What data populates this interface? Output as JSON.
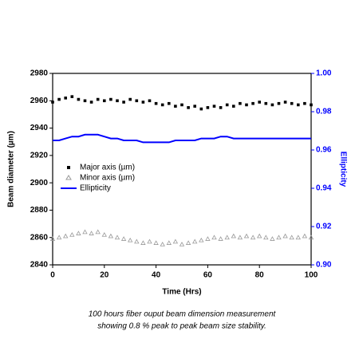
{
  "chart_data": {
    "type": "scatter-line",
    "xlabel": "Time (Hrs)",
    "ylabel": "Beam diameter (µm)",
    "y2label": "Ellipticity",
    "caption": [
      "100 hours fiber ouput beam dimension measurement",
      "showing 0.8 % peak to peak beam size stability."
    ],
    "x": [
      0,
      2.5,
      5,
      7.5,
      10,
      12.5,
      15,
      17.5,
      20,
      22.5,
      25,
      27.5,
      30,
      32.5,
      35,
      37.5,
      40,
      42.5,
      45,
      47.5,
      50,
      52.5,
      55,
      57.5,
      60,
      62.5,
      65,
      67.5,
      70,
      72.5,
      75,
      77.5,
      80,
      82.5,
      85,
      87.5,
      90,
      92.5,
      95,
      97.5,
      100
    ],
    "xlim": [
      0,
      100
    ],
    "xticks": [
      0,
      20,
      40,
      60,
      80,
      100
    ],
    "ylim": [
      2840,
      2980
    ],
    "yticks": [
      2840,
      2860,
      2880,
      2900,
      2920,
      2940,
      2960,
      2980
    ],
    "y2lim": [
      0.9,
      1.0
    ],
    "y2ticks": [
      {
        "value": 0.9,
        "label": "0.90"
      },
      0.92,
      0.94,
      0.96,
      0.98,
      {
        "value": 1.0,
        "label": "1.00"
      }
    ],
    "y2color": "#0000ff",
    "legend": "center left",
    "series": [
      {
        "name": "Major axis (µm)",
        "color": "#000000",
        "marker": "square",
        "values": [
          2959,
          2961,
          2962,
          2963,
          2961,
          2960,
          2959,
          2961,
          2960,
          2961,
          2960,
          2959,
          2961,
          2960,
          2959,
          2960,
          2958,
          2957,
          2958,
          2956,
          2957,
          2955,
          2956,
          2954,
          2955,
          2956,
          2955,
          2957,
          2956,
          2958,
          2957,
          2958,
          2959,
          2958,
          2957,
          2958,
          2959,
          2958,
          2957,
          2958,
          2957
        ]
      },
      {
        "name": "Minor axis (µm)",
        "color": "#999999",
        "marker": "triangle",
        "values": [
          2859,
          2860,
          2861,
          2862,
          2863,
          2864,
          2863,
          2864,
          2862,
          2861,
          2860,
          2859,
          2858,
          2857,
          2856,
          2857,
          2856,
          2855,
          2856,
          2857,
          2855,
          2856,
          2857,
          2858,
          2859,
          2860,
          2859,
          2860,
          2861,
          2860,
          2861,
          2860,
          2861,
          2860,
          2859,
          2860,
          2861,
          2860,
          2860,
          2861,
          2860
        ]
      },
      {
        "name": "Ellipticity",
        "color": "#0000ff",
        "marker": "line",
        "axis": "y2",
        "values": [
          0.965,
          0.965,
          0.966,
          0.967,
          0.967,
          0.968,
          0.968,
          0.968,
          0.967,
          0.966,
          0.966,
          0.965,
          0.965,
          0.965,
          0.964,
          0.964,
          0.964,
          0.964,
          0.964,
          0.965,
          0.965,
          0.965,
          0.965,
          0.966,
          0.966,
          0.966,
          0.967,
          0.967,
          0.966,
          0.966,
          0.966,
          0.966,
          0.966,
          0.966,
          0.966,
          0.966,
          0.966,
          0.966,
          0.966,
          0.966,
          0.966
        ]
      }
    ]
  }
}
